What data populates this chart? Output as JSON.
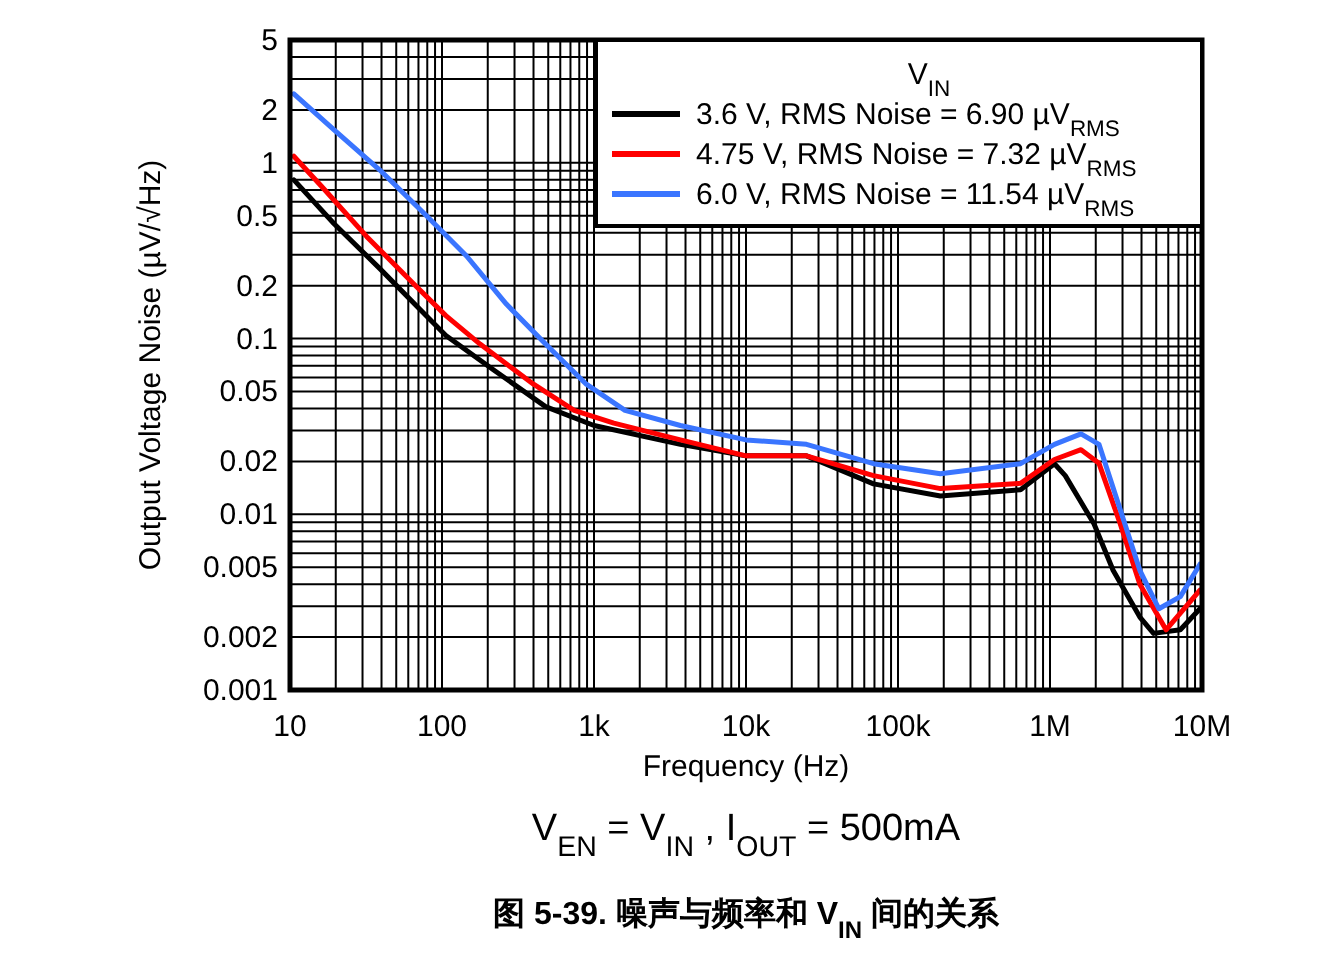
{
  "chart_data": {
    "type": "line",
    "xlabel": "Frequency (Hz)",
    "ylabel": "Output Voltage Noise (µV/√Hz)",
    "legend_title": "V$_{IN}$",
    "log": "xy",
    "xlim": [
      10,
      10000000
    ],
    "xticks": [
      10,
      100,
      {
        "value": 1000,
        "label": "1k"
      },
      {
        "value": 10000,
        "label": "10k"
      },
      {
        "value": 100000,
        "label": "100k"
      },
      {
        "value": 1000000,
        "label": "1M"
      },
      {
        "value": 10000000,
        "label": "10M"
      }
    ],
    "ylim": [
      0.001,
      5
    ],
    "yticks": [
      0.001,
      0.002,
      0.005,
      0.01,
      0.02,
      0.05,
      0.1,
      0.2,
      0.5,
      1,
      2,
      5
    ],
    "grid": true,
    "legend": "top right",
    "marker": "none",
    "line_style": "solid",
    "series": [
      {
        "name": "3.6 V, RMS Noise = 6.90 µV$_{RMS}$",
        "color": "#000000",
        "x": [
          10.6,
          19.5,
          39,
          72,
          106,
          220,
          480,
          1000,
          3700,
          10000,
          25000,
          69000,
          190000,
          640000,
          1070000,
          1260000,
          1950000,
          2600000,
          3900000,
          4800000,
          7200000,
          9700000
        ],
        "values": [
          0.8,
          0.45,
          0.25,
          0.146,
          0.104,
          0.066,
          0.041,
          0.032,
          0.025,
          0.0215,
          0.0215,
          0.0149,
          0.0127,
          0.0138,
          0.0194,
          0.0166,
          0.0088,
          0.0048,
          0.0026,
          0.0021,
          0.0022,
          0.0029
        ]
      },
      {
        "name": "4.75 V, RMS Noise = 7.32 µV$_{RMS}$",
        "color": "#ff0000",
        "x": [
          10.6,
          16,
          32,
          65,
          106,
          178,
          400,
          740,
          1350,
          3700,
          10000,
          25000,
          69000,
          190000,
          640000,
          1070000,
          1600000,
          2100000,
          2900000,
          3900000,
          5800000,
          9700000
        ],
        "values": [
          1.09,
          0.74,
          0.38,
          0.205,
          0.135,
          0.093,
          0.055,
          0.039,
          0.033,
          0.0265,
          0.0215,
          0.0215,
          0.0166,
          0.014,
          0.015,
          0.0205,
          0.0233,
          0.0195,
          0.0088,
          0.004,
          0.0022,
          0.0037
        ]
      },
      {
        "name": "6.0 V, RMS Noise = 11.54 µV$_{RMS}$",
        "color": "#3a75ff",
        "x": [
          10.6,
          19.5,
          39,
          79,
          145,
          265,
          480,
          890,
          1600,
          3700,
          10000,
          25000,
          69000,
          190000,
          640000,
          1070000,
          1600000,
          2100000,
          2900000,
          3900000,
          5200000,
          7200000,
          9700000
        ],
        "values": [
          2.47,
          1.54,
          0.91,
          0.5,
          0.295,
          0.157,
          0.093,
          0.055,
          0.039,
          0.032,
          0.0265,
          0.025,
          0.0194,
          0.017,
          0.0194,
          0.025,
          0.0287,
          0.025,
          0.0106,
          0.0048,
          0.0029,
          0.0034,
          0.0052
        ]
      }
    ],
    "annotations": [
      "V$_{EN}$ = V$_{IN}$ , I$_{OUT}$ = 500mA",
      "图 5-39. 噪声与频率和 V$_{IN}$ 间的关系"
    ]
  }
}
